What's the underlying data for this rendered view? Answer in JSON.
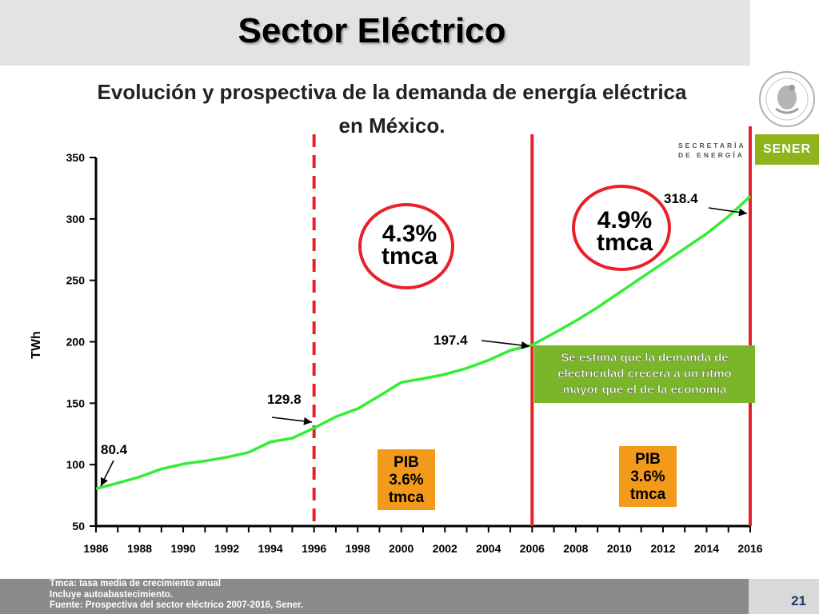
{
  "slide": {
    "title": "Sector Eléctrico",
    "page_number": "21",
    "footer_notes": [
      "Tmca: tasa media de crecimiento anual",
      "Incluye autoabastecimiento.",
      "Fuente: Prospectiva del sector eléctrico 2007-2016, Sener."
    ],
    "logo": {
      "secretaria_line1": "SECRETARÍA",
      "secretaria_line2": "DE ENERGÍA",
      "sener": "SENER",
      "seal_icon": "mexican-coat-of-arms-seal-icon"
    }
  },
  "chart_data": {
    "type": "line",
    "title_line1": "Evolución y prospectiva de la demanda de energía eléctrica",
    "title_line2": "en México.",
    "ylabel": "TWh",
    "xlabel": "",
    "ylim": [
      50,
      350
    ],
    "xlim": [
      1986,
      2016
    ],
    "yticks": [
      50,
      100,
      150,
      200,
      250,
      300,
      350
    ],
    "xtick_labels": [
      "1986",
      "1988",
      "1990",
      "1992",
      "1994",
      "1996",
      "1998",
      "2000",
      "2002",
      "2004",
      "2006",
      "2008",
      "2010",
      "2012",
      "2014",
      "2016"
    ],
    "grid": false,
    "line_color": "#33ee33",
    "series": [
      {
        "x": [
          1986,
          1987,
          1988,
          1989,
          1990,
          1991,
          1992,
          1993,
          1994,
          1995,
          1996,
          1997,
          1998,
          1999,
          2000,
          2001,
          2002,
          2003,
          2004,
          2005,
          2006,
          2007,
          2008,
          2009,
          2010,
          2011,
          2012,
          2013,
          2014,
          2015,
          2016
        ],
        "y": [
          80.4,
          85,
          90,
          96.5,
          100.5,
          103,
          106,
          110,
          118.5,
          121.5,
          129.8,
          139,
          145.5,
          156,
          167,
          170,
          173.5,
          178.5,
          185,
          193,
          197.4,
          207,
          217,
          228,
          240,
          252,
          264,
          276,
          288,
          302,
          318.4
        ]
      }
    ],
    "data_labels": [
      {
        "text": "80.4",
        "x": 1986,
        "y": 80.4
      },
      {
        "text": "129.8",
        "x": 1996,
        "y": 129.8
      },
      {
        "text": "197.4",
        "x": 2006,
        "y": 197.4
      },
      {
        "text": "318.4",
        "x": 2016,
        "y": 318.4
      }
    ],
    "vertical_lines": [
      {
        "x": 1996,
        "style": "dashed",
        "color": "#e8222a"
      },
      {
        "x": 2006,
        "style": "solid",
        "color": "#e8222a"
      },
      {
        "x": 2016,
        "style": "solid",
        "color": "#e8222a"
      }
    ],
    "annotations": {
      "period1_growth": {
        "line1": "4.3%",
        "line2": "tmca"
      },
      "period2_growth": {
        "line1": "4.9%",
        "line2": "tmca"
      },
      "pib1": {
        "line1": "PIB",
        "line2": "3.6%",
        "line3": "tmca",
        "color": "#f39a1b"
      },
      "pib2": {
        "line1": "PIB",
        "line2": "3.6%",
        "line3": "tmca",
        "color": "#f39a1b"
      },
      "forecast_note": {
        "line1": "Se estima que la demanda de",
        "line2": "electricidad crecerá a un ritmo",
        "line3": "mayor que el de la economía",
        "color": "#7bb52a"
      }
    }
  }
}
